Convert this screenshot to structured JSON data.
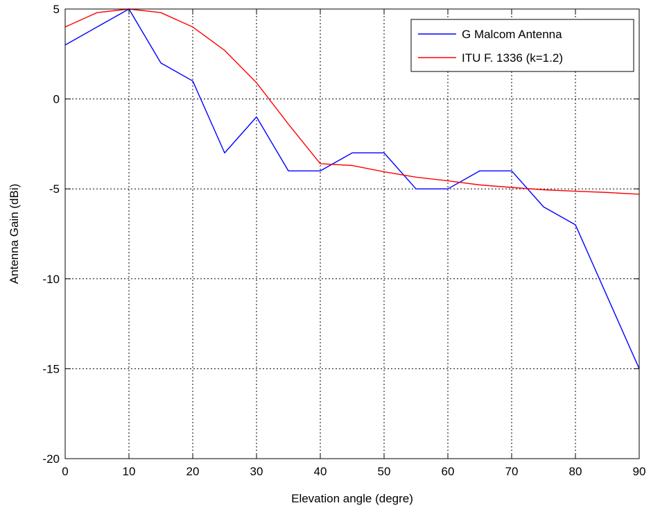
{
  "chart_data": {
    "type": "line",
    "title": "",
    "xlabel": "Elevation angle (degre)",
    "ylabel": "Antenna Gain (dBi)",
    "xlim": [
      0,
      90
    ],
    "ylim": [
      -20,
      5
    ],
    "xticks": [
      0,
      10,
      20,
      30,
      40,
      50,
      60,
      70,
      80,
      90
    ],
    "yticks": [
      -20,
      -15,
      -10,
      -5,
      0,
      5
    ],
    "grid": true,
    "legend_position": "top-right",
    "series": [
      {
        "name": "G Malcom Antenna",
        "color": "#0000ff",
        "x": [
          0,
          5,
          10,
          15,
          20,
          25,
          30,
          35,
          40,
          45,
          50,
          55,
          60,
          65,
          70,
          75,
          80,
          90
        ],
        "y": [
          3,
          4,
          5,
          2,
          1,
          -3,
          -1,
          -4,
          -4,
          -3,
          -3,
          -5,
          -5,
          -4,
          -4,
          -6,
          -7,
          -15
        ]
      },
      {
        "name": "ITU F. 1336 (k=1.2)",
        "color": "#ff0000",
        "x": [
          0,
          5,
          10,
          15,
          20,
          25,
          30,
          35,
          40,
          45,
          50,
          55,
          60,
          65,
          70,
          75,
          80,
          85,
          90
        ],
        "y": [
          4,
          4.8,
          5,
          4.8,
          4,
          2.7,
          0.9,
          -1.4,
          -3.6,
          -3.7,
          -4.05,
          -4.35,
          -4.55,
          -4.78,
          -4.92,
          -5.05,
          -5.13,
          -5.2,
          -5.3
        ]
      }
    ]
  }
}
